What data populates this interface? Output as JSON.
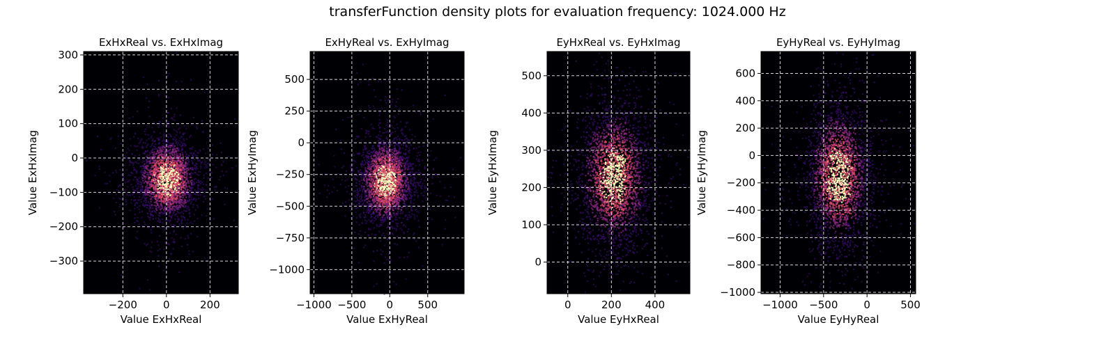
{
  "figure": {
    "suptitle": "transferFunction density plots for evaluation frequency: 1024.000 Hz"
  },
  "colors": {
    "background": "#000004",
    "low": "#3b0f70",
    "mid": "#8c2981",
    "high": "#de4968",
    "peak": "#fcfdbf",
    "grid": "#ffffff"
  },
  "chart_data": [
    {
      "type": "heatmap",
      "title": "ExHxReal vs. ExHxImag",
      "xlabel": "Value ExHxReal",
      "ylabel": "Value ExHxImag",
      "xlim": [
        -380,
        330
      ],
      "ylim": [
        -395,
        310
      ],
      "xticks": [
        -200,
        0,
        200
      ],
      "xtick_labels": [
        "−200",
        "0",
        "200"
      ],
      "yticks": [
        -300,
        -200,
        -100,
        0,
        100,
        200,
        300
      ],
      "ytick_labels": [
        "−300",
        "−200",
        "−100",
        "0",
        "100",
        "200",
        "300"
      ],
      "grid": true,
      "density_center": [
        0,
        -60
      ],
      "density_spread": [
        70,
        60
      ]
    },
    {
      "type": "heatmap",
      "title": "ExHyReal vs. ExHyImag",
      "xlabel": "Value ExHyReal",
      "ylabel": "Value ExHyImag",
      "xlim": [
        -1050,
        980
      ],
      "ylim": [
        -1190,
        720
      ],
      "xticks": [
        -1000,
        -500,
        0,
        500
      ],
      "xtick_labels": [
        "−1000",
        "−500",
        "0",
        "500"
      ],
      "yticks": [
        -1000,
        -750,
        -500,
        -250,
        0,
        250,
        500
      ],
      "ytick_labels": [
        "−1000",
        "−750",
        "−500",
        "−250",
        "0",
        "250",
        "500"
      ],
      "grid": true,
      "density_center": [
        -60,
        -300
      ],
      "density_spread": [
        180,
        170
      ]
    },
    {
      "type": "heatmap",
      "title": "EyHxReal vs. EyHxImag",
      "xlabel": "Value EyHxReal",
      "ylabel": "Value EyHxImag",
      "xlim": [
        -95,
        560
      ],
      "ylim": [
        -85,
        565
      ],
      "xticks": [
        0,
        200,
        400
      ],
      "xtick_labels": [
        "0",
        "200",
        "400"
      ],
      "yticks": [
        0,
        100,
        200,
        300,
        400,
        500
      ],
      "ytick_labels": [
        "0",
        "100",
        "200",
        "300",
        "400",
        "500"
      ],
      "grid": true,
      "density_center": [
        210,
        230
      ],
      "density_spread": [
        80,
        95
      ]
    },
    {
      "type": "heatmap",
      "title": "EyHyReal vs. EyHyImag",
      "xlabel": "Value EyHyReal",
      "ylabel": "Value EyHyImag",
      "xlim": [
        -1220,
        560
      ],
      "ylim": [
        -1010,
        760
      ],
      "xticks": [
        -1000,
        -500,
        0,
        500
      ],
      "xtick_labels": [
        "−1000",
        "−500",
        "0",
        "500"
      ],
      "yticks": [
        -1000,
        -800,
        -600,
        -400,
        -200,
        0,
        200,
        400,
        600
      ],
      "ytick_labels": [
        "−1000",
        "−800",
        "−600",
        "−400",
        "−200",
        "0",
        "200",
        "400",
        "600"
      ],
      "grid": true,
      "density_center": [
        -330,
        -150
      ],
      "density_spread": [
        180,
        260
      ]
    }
  ]
}
